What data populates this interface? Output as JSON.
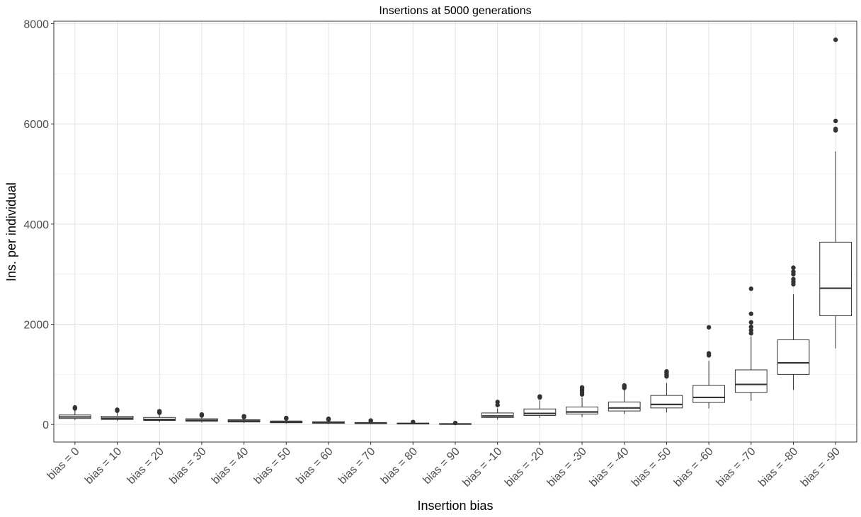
{
  "chart_data": {
    "type": "box",
    "title": "Insertions at 5000 generations",
    "xlabel": "Insertion bias",
    "ylabel": "Ins. per individual",
    "ylim": [
      -350,
      8050
    ],
    "yticks": [
      0,
      2000,
      4000,
      6000,
      8000
    ],
    "ytick_labels": [
      "0",
      "2000",
      "4000",
      "6000",
      "8000"
    ],
    "grid": true,
    "legend": "none",
    "categories": [
      "bias = 0",
      "bias = 10",
      "bias = 20",
      "bias = 30",
      "bias = 40",
      "bias = 50",
      "bias = 60",
      "bias = 70",
      "bias = 80",
      "bias = 90",
      "bias = -10",
      "bias = -20",
      "bias = -30",
      "bias = -40",
      "bias = -50",
      "bias = -60",
      "bias = -70",
      "bias = -80",
      "bias = -90"
    ],
    "boxes": [
      {
        "min": 90,
        "q1": 120,
        "median": 150,
        "q3": 190,
        "max": 280,
        "outliers": [
          320,
          340
        ]
      },
      {
        "min": 70,
        "q1": 100,
        "median": 125,
        "q3": 165,
        "max": 230,
        "outliers": [
          275,
          295
        ]
      },
      {
        "min": 50,
        "q1": 80,
        "median": 100,
        "q3": 140,
        "max": 210,
        "outliers": [
          235,
          250,
          265
        ]
      },
      {
        "min": 40,
        "q1": 65,
        "median": 85,
        "q3": 115,
        "max": 160,
        "outliers": [
          180,
          200
        ]
      },
      {
        "min": 30,
        "q1": 50,
        "median": 70,
        "q3": 95,
        "max": 135,
        "outliers": [
          150,
          165
        ]
      },
      {
        "min": 20,
        "q1": 35,
        "median": 50,
        "q3": 70,
        "max": 105,
        "outliers": [
          120,
          130
        ]
      },
      {
        "min": 12,
        "q1": 25,
        "median": 35,
        "q3": 55,
        "max": 85,
        "outliers": [
          100,
          115
        ]
      },
      {
        "min": 8,
        "q1": 18,
        "median": 27,
        "q3": 40,
        "max": 60,
        "outliers": [
          70,
          80
        ]
      },
      {
        "min": 5,
        "q1": 10,
        "median": 18,
        "q3": 28,
        "max": 40,
        "outliers": [
          50
        ]
      },
      {
        "min": 2,
        "q1": 6,
        "median": 10,
        "q3": 17,
        "max": 25,
        "outliers": [
          30
        ]
      },
      {
        "min": 100,
        "q1": 140,
        "median": 170,
        "q3": 230,
        "max": 320,
        "outliers": [
          390,
          450
        ]
      },
      {
        "min": 130,
        "q1": 180,
        "median": 220,
        "q3": 310,
        "max": 480,
        "outliers": [
          540,
          560
        ]
      },
      {
        "min": 150,
        "q1": 210,
        "median": 250,
        "q3": 350,
        "max": 540,
        "outliers": [
          600,
          640,
          680,
          720,
          740
        ]
      },
      {
        "min": 210,
        "q1": 270,
        "median": 330,
        "q3": 450,
        "max": 690,
        "outliers": [
          730,
          760,
          780
        ]
      },
      {
        "min": 240,
        "q1": 330,
        "median": 400,
        "q3": 580,
        "max": 830,
        "outliers": [
          960,
          990,
          1030,
          1060
        ]
      },
      {
        "min": 320,
        "q1": 440,
        "median": 540,
        "q3": 780,
        "max": 1270,
        "outliers": [
          1380,
          1420,
          1940
        ]
      },
      {
        "min": 470,
        "q1": 640,
        "median": 800,
        "q3": 1090,
        "max": 1760,
        "outliers": [
          1820,
          1880,
          1950,
          2040,
          2210,
          2710
        ]
      },
      {
        "min": 690,
        "q1": 1000,
        "median": 1230,
        "q3": 1690,
        "max": 2600,
        "outliers": [
          2800,
          2850,
          2900,
          3000,
          3050,
          3130
        ]
      },
      {
        "min": 1520,
        "q1": 2170,
        "median": 2720,
        "q3": 3640,
        "max": 5450,
        "outliers": [
          5870,
          5900,
          6060,
          7680
        ]
      }
    ]
  }
}
